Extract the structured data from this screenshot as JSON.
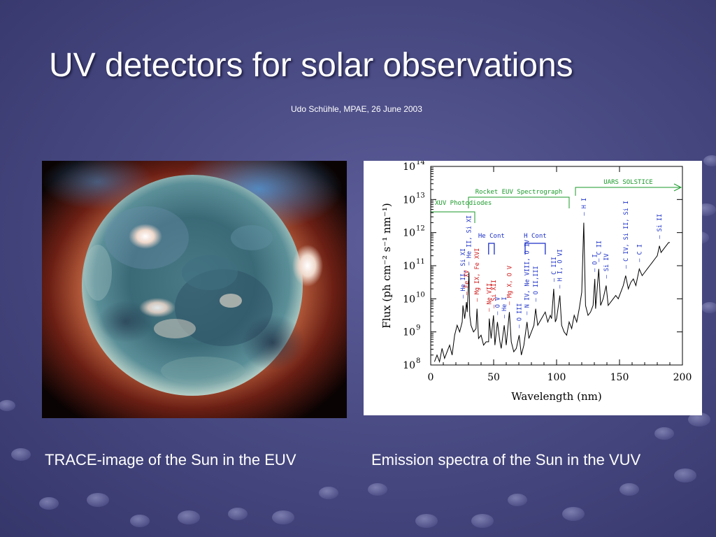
{
  "slide": {
    "title": "UV detectors for solar observations",
    "subtitle": "Udo Schühle, MPAE, 26 June 2003",
    "caption_left": "TRACE-image of the Sun in the EUV",
    "caption_right": "Emission spectra of the Sun in the VUV",
    "background_color": "#4a4b84"
  },
  "chart_data": {
    "type": "line",
    "xlabel": "Wavelength (nm)",
    "ylabel": "Flux (ph cm⁻² s⁻¹ nm⁻¹)",
    "xlim": [
      0,
      200
    ],
    "ylim": [
      100000000,
      100000000000000
    ],
    "yscale": "log",
    "x_ticks": [
      "0",
      "50",
      "100",
      "150",
      "200"
    ],
    "y_ticks": [
      {
        "base": "10",
        "exp": "8",
        "value": 8
      },
      {
        "base": "10",
        "exp": "9",
        "value": 9
      },
      {
        "base": "10",
        "exp": "10",
        "value": 10
      },
      {
        "base": "10",
        "exp": "11",
        "value": 11
      },
      {
        "base": "10",
        "exp": "12",
        "value": 12
      },
      {
        "base": "10",
        "exp": "13",
        "value": 13
      },
      {
        "base": "10",
        "exp": "14",
        "value": 14
      }
    ],
    "instrument_ranges": [
      {
        "label": "XUV Photodiodes",
        "label2": "",
        "start": 0,
        "end": 35
      },
      {
        "label": "Rocket EUV Spectrograph",
        "start": 30,
        "end": 110
      },
      {
        "label": "UARS SOLSTICE",
        "start": 115,
        "end": 200
      }
    ],
    "bracket_labels": [
      {
        "label": "He Cont",
        "start": 46,
        "end": 50.5
      },
      {
        "label": "H Cont",
        "start": 75,
        "end": 91
      }
    ],
    "line_labels": [
      {
        "text": "He II, Si XI",
        "x": 25.6,
        "color": "blue"
      },
      {
        "text": "Fe XV",
        "x": 28.4,
        "color": "red"
      },
      {
        "text": "He II, Si XI",
        "x": 30.4,
        "color": "blue"
      },
      {
        "text": "Mg IX, Fe XVI",
        "x": 36.8,
        "color": "red"
      },
      {
        "text": "Ne VII",
        "x": 46.5,
        "color": "red"
      },
      {
        "text": "Si XII",
        "x": 49.9,
        "color": "red"
      },
      {
        "text": "O V",
        "x": 53.0,
        "color": "blue"
      },
      {
        "text": "He I",
        "x": 58.4,
        "color": "blue"
      },
      {
        "text": "Mg X, O V",
        "x": 62.5,
        "color": "red"
      },
      {
        "text": "O III",
        "x": 70.3,
        "color": "blue"
      },
      {
        "text": "N IV, Ne VIII, O IV",
        "x": 76.5,
        "color": "blue"
      },
      {
        "text": "O II,III",
        "x": 83.4,
        "color": "blue"
      },
      {
        "text": "C III",
        "x": 97.7,
        "color": "blue"
      },
      {
        "text": "H I, O VI",
        "x": 102.6,
        "color": "blue"
      },
      {
        "text": "H I",
        "x": 121.6,
        "color": "blue"
      },
      {
        "text": "O I",
        "x": 130.4,
        "color": "blue"
      },
      {
        "text": "C II",
        "x": 133.5,
        "color": "blue"
      },
      {
        "text": "Si IV",
        "x": 139.4,
        "color": "blue"
      },
      {
        "text": "C IV, Si II, Si I",
        "x": 154.9,
        "color": "blue"
      },
      {
        "text": "C I",
        "x": 165.7,
        "color": "blue"
      },
      {
        "text": "Si II",
        "x": 181.7,
        "color": "blue"
      }
    ],
    "spectrum_x": [
      3,
      5,
      7,
      9,
      11,
      13,
      15,
      17,
      19,
      21,
      23,
      25,
      25.6,
      27,
      28.4,
      29,
      30.4,
      31,
      32,
      34,
      36,
      36.8,
      38,
      40,
      42,
      44,
      46,
      46.5,
      48,
      49.9,
      51,
      53,
      55,
      56,
      58.4,
      60,
      62.5,
      64,
      66,
      68,
      70.3,
      72,
      74,
      76.5,
      78,
      80,
      82,
      83.4,
      85,
      88,
      91,
      93,
      95,
      96,
      97.7,
      99,
      100,
      102.6,
      104,
      106,
      108,
      110,
      112,
      114,
      116,
      118,
      120,
      121.6,
      123,
      125,
      127,
      129,
      130.4,
      131,
      133.5,
      135,
      137,
      139.4,
      141,
      143,
      145,
      147,
      149,
      151,
      153,
      154.9,
      157,
      159,
      161,
      163,
      165.7,
      168,
      170,
      172,
      174,
      176,
      178,
      180,
      181.7,
      183,
      185,
      187,
      189,
      190
    ],
    "spectrum_y": [
      8.1,
      8.3,
      8.1,
      8.5,
      8.2,
      8.4,
      8.6,
      8.3,
      8.9,
      9.2,
      9.0,
      9.3,
      9.8,
      9.4,
      9.9,
      9.6,
      10.8,
      9.5,
      9.2,
      9.0,
      9.1,
      9.7,
      8.8,
      8.9,
      8.6,
      8.7,
      8.7,
      9.4,
      8.8,
      9.5,
      8.6,
      9.3,
      8.7,
      8.5,
      9.2,
      8.6,
      9.6,
      8.7,
      8.4,
      8.5,
      8.9,
      8.3,
      8.6,
      9.3,
      8.8,
      9.0,
      9.2,
      9.7,
      9.2,
      9.4,
      9.6,
      9.3,
      9.5,
      9.4,
      10.3,
      9.3,
      9.4,
      10.1,
      9.2,
      9.0,
      8.9,
      9.3,
      9.1,
      9.5,
      9.3,
      9.7,
      10.2,
      12.3,
      9.8,
      9.5,
      9.6,
      9.8,
      10.6,
      9.7,
      10.9,
      9.8,
      10.0,
      10.4,
      9.8,
      9.9,
      10.0,
      10.1,
      10.0,
      10.2,
      10.4,
      10.7,
      10.3,
      10.5,
      10.6,
      10.4,
      10.9,
      10.7,
      10.8,
      10.9,
      11.0,
      11.1,
      11.2,
      11.3,
      11.6,
      11.4,
      11.5,
      11.6,
      11.7,
      11.7
    ]
  }
}
